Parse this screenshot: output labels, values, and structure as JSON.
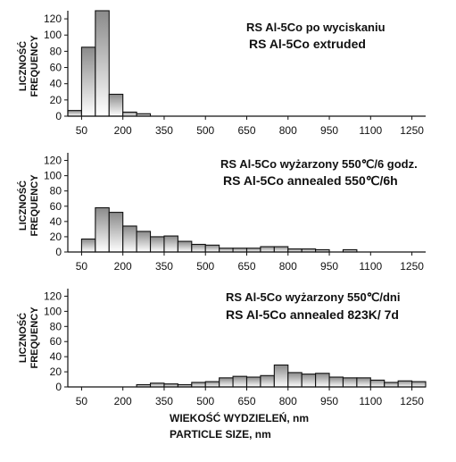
{
  "chart_data": [
    {
      "type": "bar",
      "bin_starts": [
        0,
        50,
        100,
        150,
        200,
        250,
        300,
        350
      ],
      "bin_width": 50,
      "values": [
        7,
        85,
        130,
        27,
        5,
        3,
        0,
        0
      ],
      "ylabel": [
        "LICZNOŚĆ",
        "FREQUENCY"
      ],
      "annotation": [
        "RS Al-5Co po wyciskaniu",
        "RS Al-5Co extruded"
      ],
      "xticks": [
        50,
        200,
        350,
        500,
        650,
        800,
        950,
        1100,
        1250
      ],
      "xticklabels": [
        "50",
        "200",
        "350",
        "500",
        "650",
        "800",
        "950",
        "1100",
        "1250"
      ],
      "yticks": [
        0,
        20,
        40,
        60,
        80,
        100,
        120
      ],
      "yticklabels": [
        "0",
        "20",
        "40",
        "60",
        "80",
        "100",
        "120"
      ],
      "xlim": [
        0,
        1300
      ],
      "ylim": [
        0,
        130
      ],
      "grid": false
    },
    {
      "type": "bar",
      "bin_starts": [
        50,
        100,
        150,
        200,
        250,
        300,
        350,
        400,
        450,
        500,
        550,
        600,
        650,
        700,
        750,
        800,
        850,
        900,
        950,
        1000
      ],
      "bin_width": 50,
      "values": [
        17,
        58,
        52,
        34,
        27,
        20,
        21,
        14,
        10,
        9,
        5,
        5,
        5,
        7,
        7,
        4,
        4,
        3,
        0,
        3
      ],
      "ylabel": [
        "LICZNOŚĆ",
        "FREQUENCY"
      ],
      "annotation": [
        "RS Al-5Co wyżarzony 550℃/6 godz.",
        "RS Al-5Co annealed 550℃/6h"
      ],
      "xticks": [
        50,
        200,
        350,
        500,
        650,
        800,
        950,
        1100,
        1250
      ],
      "xticklabels": [
        "50",
        "200",
        "350",
        "500",
        "650",
        "800",
        "950",
        "1100",
        "1250"
      ],
      "yticks": [
        0,
        20,
        40,
        60,
        80,
        100,
        120
      ],
      "yticklabels": [
        "0",
        "20",
        "40",
        "60",
        "80",
        "100",
        "120"
      ],
      "xlim": [
        0,
        1300
      ],
      "ylim": [
        0,
        130
      ],
      "grid": false
    },
    {
      "type": "bar",
      "bin_starts": [
        250,
        300,
        350,
        400,
        450,
        500,
        550,
        600,
        650,
        700,
        750,
        800,
        850,
        900,
        950,
        1000,
        1050,
        1100,
        1150,
        1200,
        1250
      ],
      "bin_width": 50,
      "values": [
        3,
        5,
        4,
        3,
        6,
        7,
        12,
        14,
        13,
        15,
        29,
        19,
        17,
        18,
        13,
        12,
        12,
        9,
        6,
        8,
        7
      ],
      "ylabel": [
        "LICZNOŚĆ",
        "FREQUENCY"
      ],
      "annotation": [
        "RS Al-5Co wyżarzony 550℃/dni",
        "RS Al-5Co annealed 823K/ 7d"
      ],
      "xticks": [
        50,
        200,
        350,
        500,
        650,
        800,
        950,
        1100,
        1250
      ],
      "xticklabels": [
        "50",
        "200",
        "350",
        "500",
        "650",
        "800",
        "950",
        "1100",
        "1250"
      ],
      "yticks": [
        0,
        20,
        40,
        60,
        80,
        100,
        120
      ],
      "yticklabels": [
        "0",
        "20",
        "40",
        "60",
        "80",
        "100",
        "120"
      ],
      "xlim": [
        0,
        1300
      ],
      "ylim": [
        0,
        130
      ],
      "grid": false,
      "xlabel": [
        "WIEKOŚĆ WYDZIELEŃ, nm",
        "PARTICLE SIZE, nm"
      ]
    }
  ],
  "colors": {
    "bar_dark": "#8a8a8a",
    "bar_light": "#ffffff",
    "bar_stroke": "#111111",
    "axis": "#111111"
  }
}
